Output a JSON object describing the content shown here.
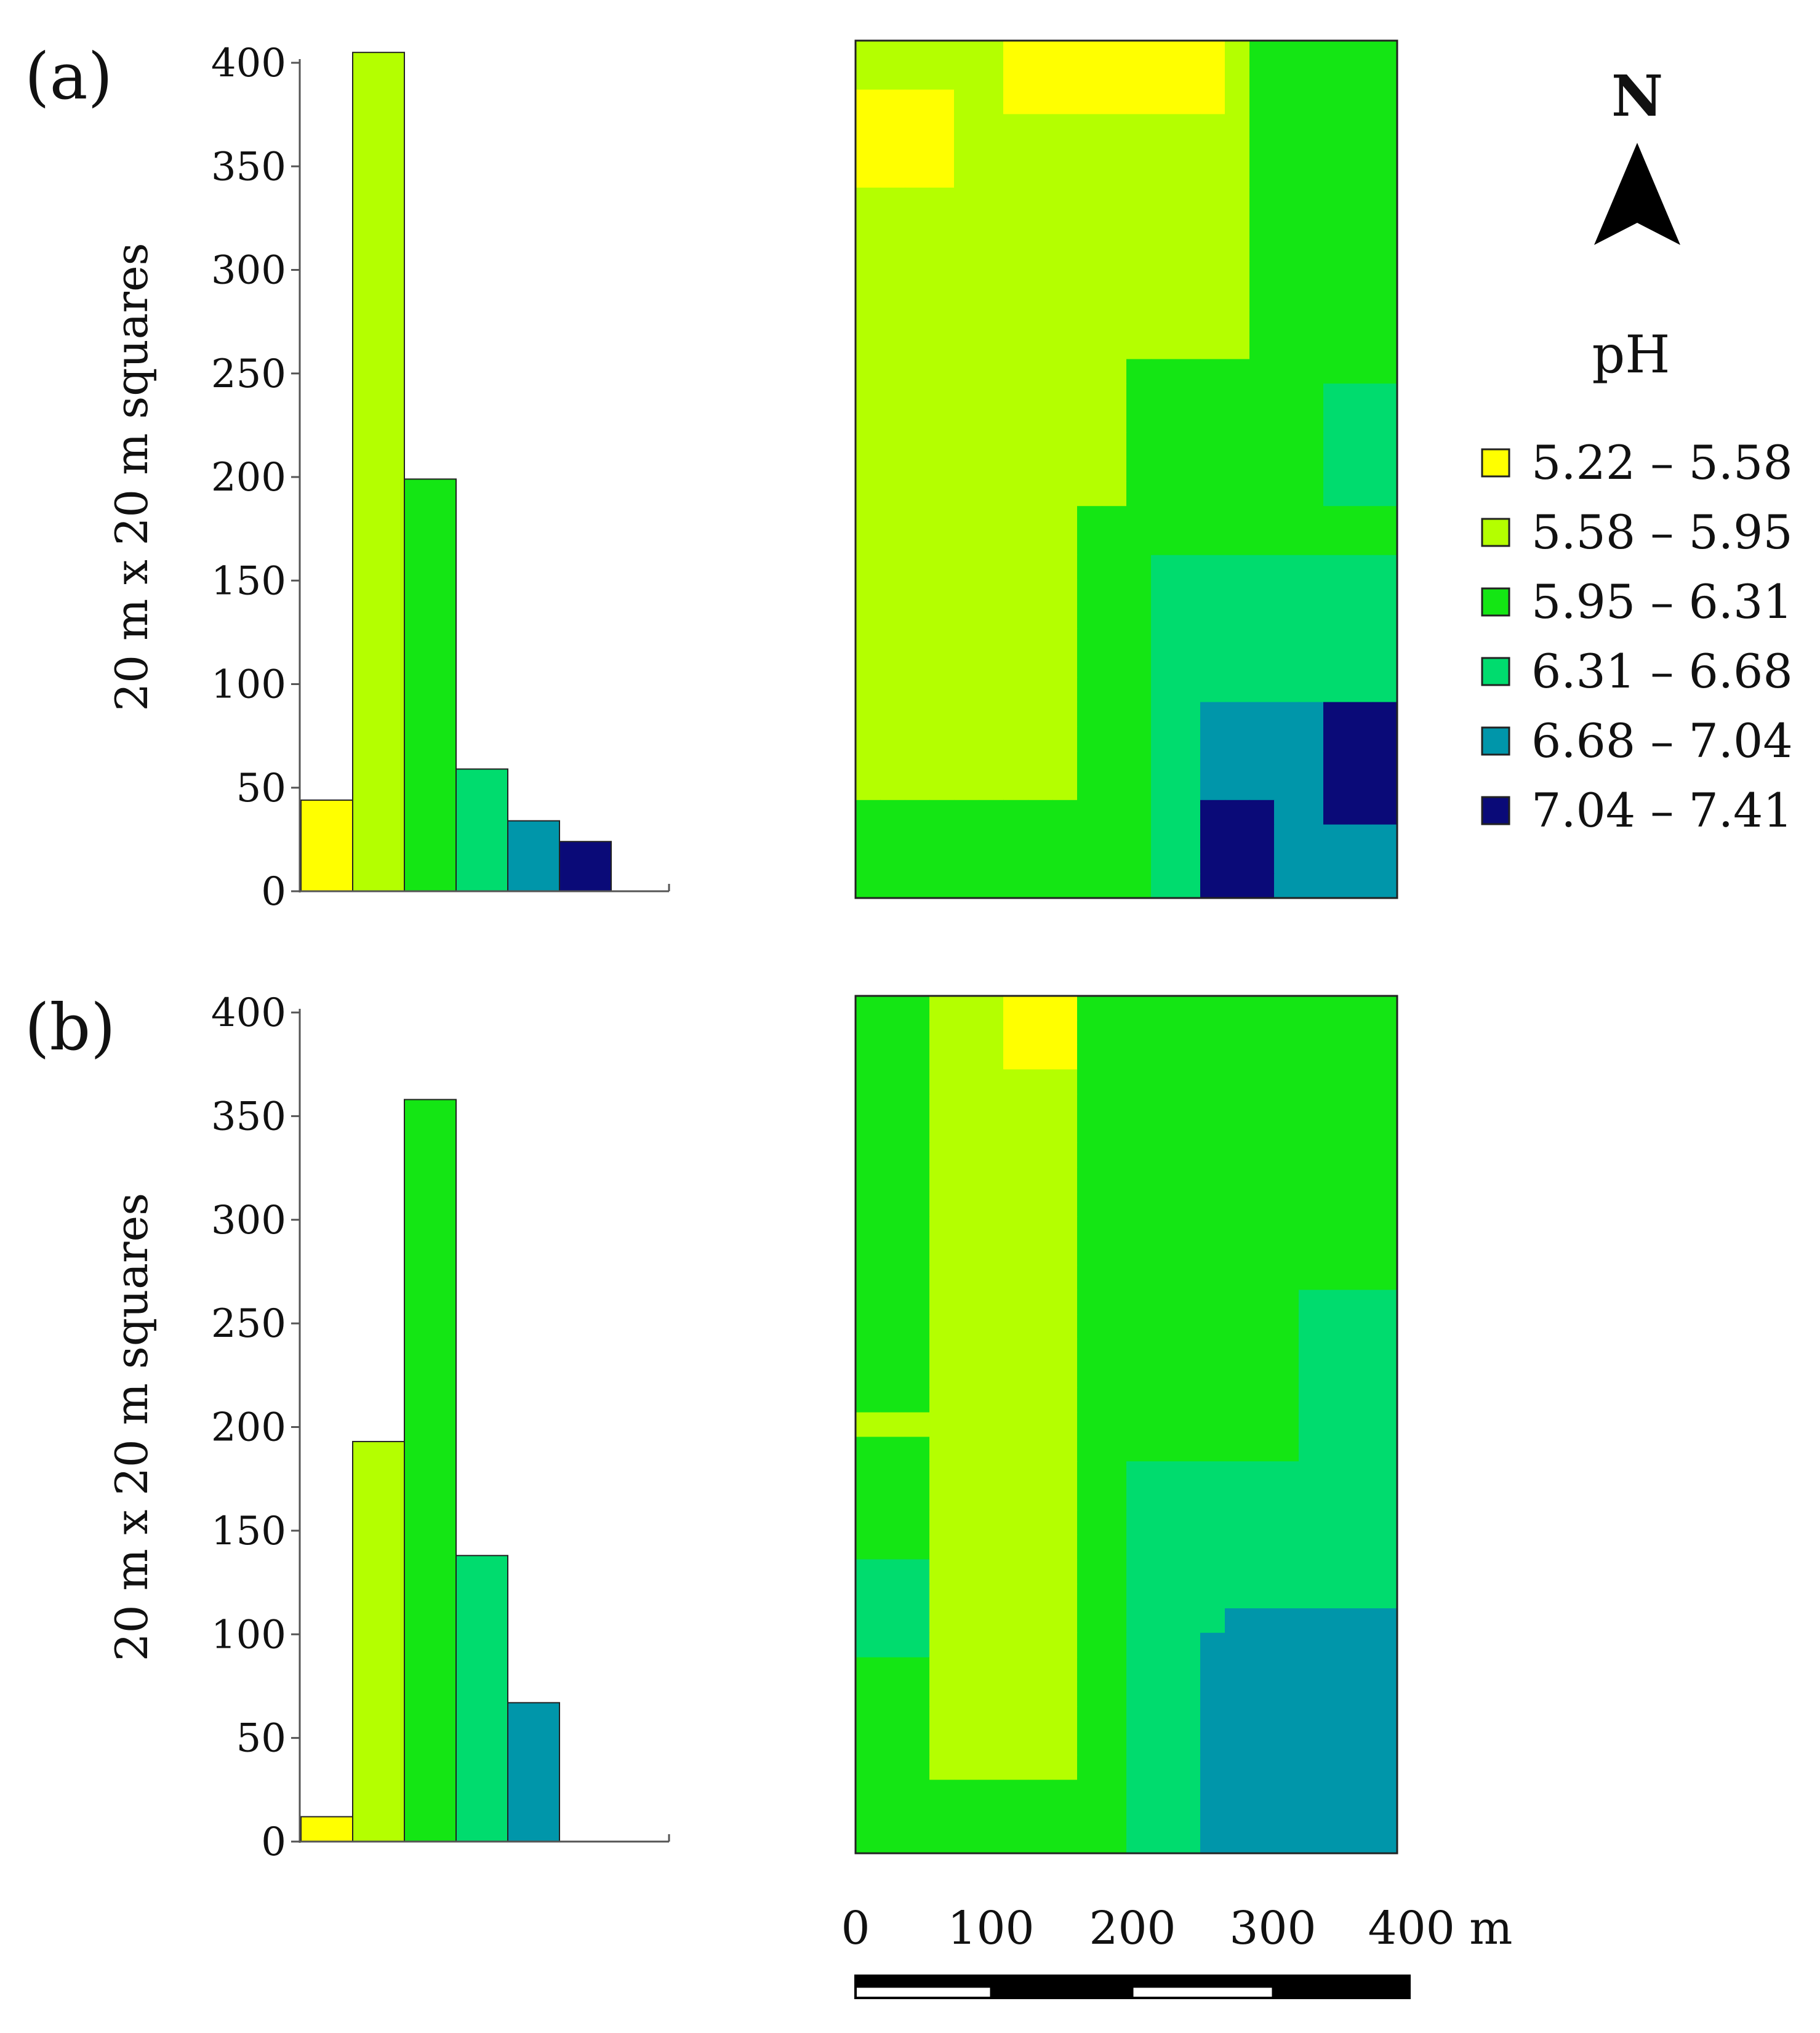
{
  "legend": {
    "title": "pH",
    "classes": [
      {
        "label": "5.22 – 5.58",
        "color": "#ffff00"
      },
      {
        "label": "5.58 – 5.95",
        "color": "#b4ff00"
      },
      {
        "label": "5.95 – 6.31",
        "color": "#14e614"
      },
      {
        "label": "6.31 – 6.68",
        "color": "#00dc6e"
      },
      {
        "label": "6.68 – 7.04",
        "color": "#0096aa"
      },
      {
        "label": "7.04 – 7.41",
        "color": "#0a0a78"
      }
    ]
  },
  "north_arrow": {
    "label": "N"
  },
  "scale_bar": {
    "labels": [
      "0",
      "100",
      "200",
      "300",
      "400 m"
    ]
  },
  "chart_data": [
    {
      "panel": "(a)",
      "type": "bar",
      "ylabel": "20 m x 20 m squares",
      "ylim": [
        0,
        400
      ],
      "yticks": [
        "0",
        "50",
        "100",
        "150",
        "200",
        "250",
        "300",
        "350",
        "400"
      ],
      "categories": [
        "5.22 – 5.58",
        "5.58 – 5.95",
        "5.95 – 6.31",
        "6.31 – 6.68",
        "6.68 – 7.04",
        "7.04 – 7.41"
      ],
      "values": [
        44,
        405,
        199,
        59,
        34,
        24
      ]
    },
    {
      "panel": "(b)",
      "type": "bar",
      "ylabel": "20 m x 20 m squares",
      "ylim": [
        0,
        400
      ],
      "yticks": [
        "0",
        "50",
        "100",
        "150",
        "200",
        "250",
        "300",
        "350",
        "400"
      ],
      "categories": [
        "5.22 – 5.58",
        "5.58 – 5.95",
        "5.95 – 6.31",
        "6.31 – 6.68",
        "6.68 – 7.04",
        "7.04 – 7.41"
      ],
      "values": [
        12,
        193,
        358,
        138,
        67,
        0
      ]
    }
  ]
}
